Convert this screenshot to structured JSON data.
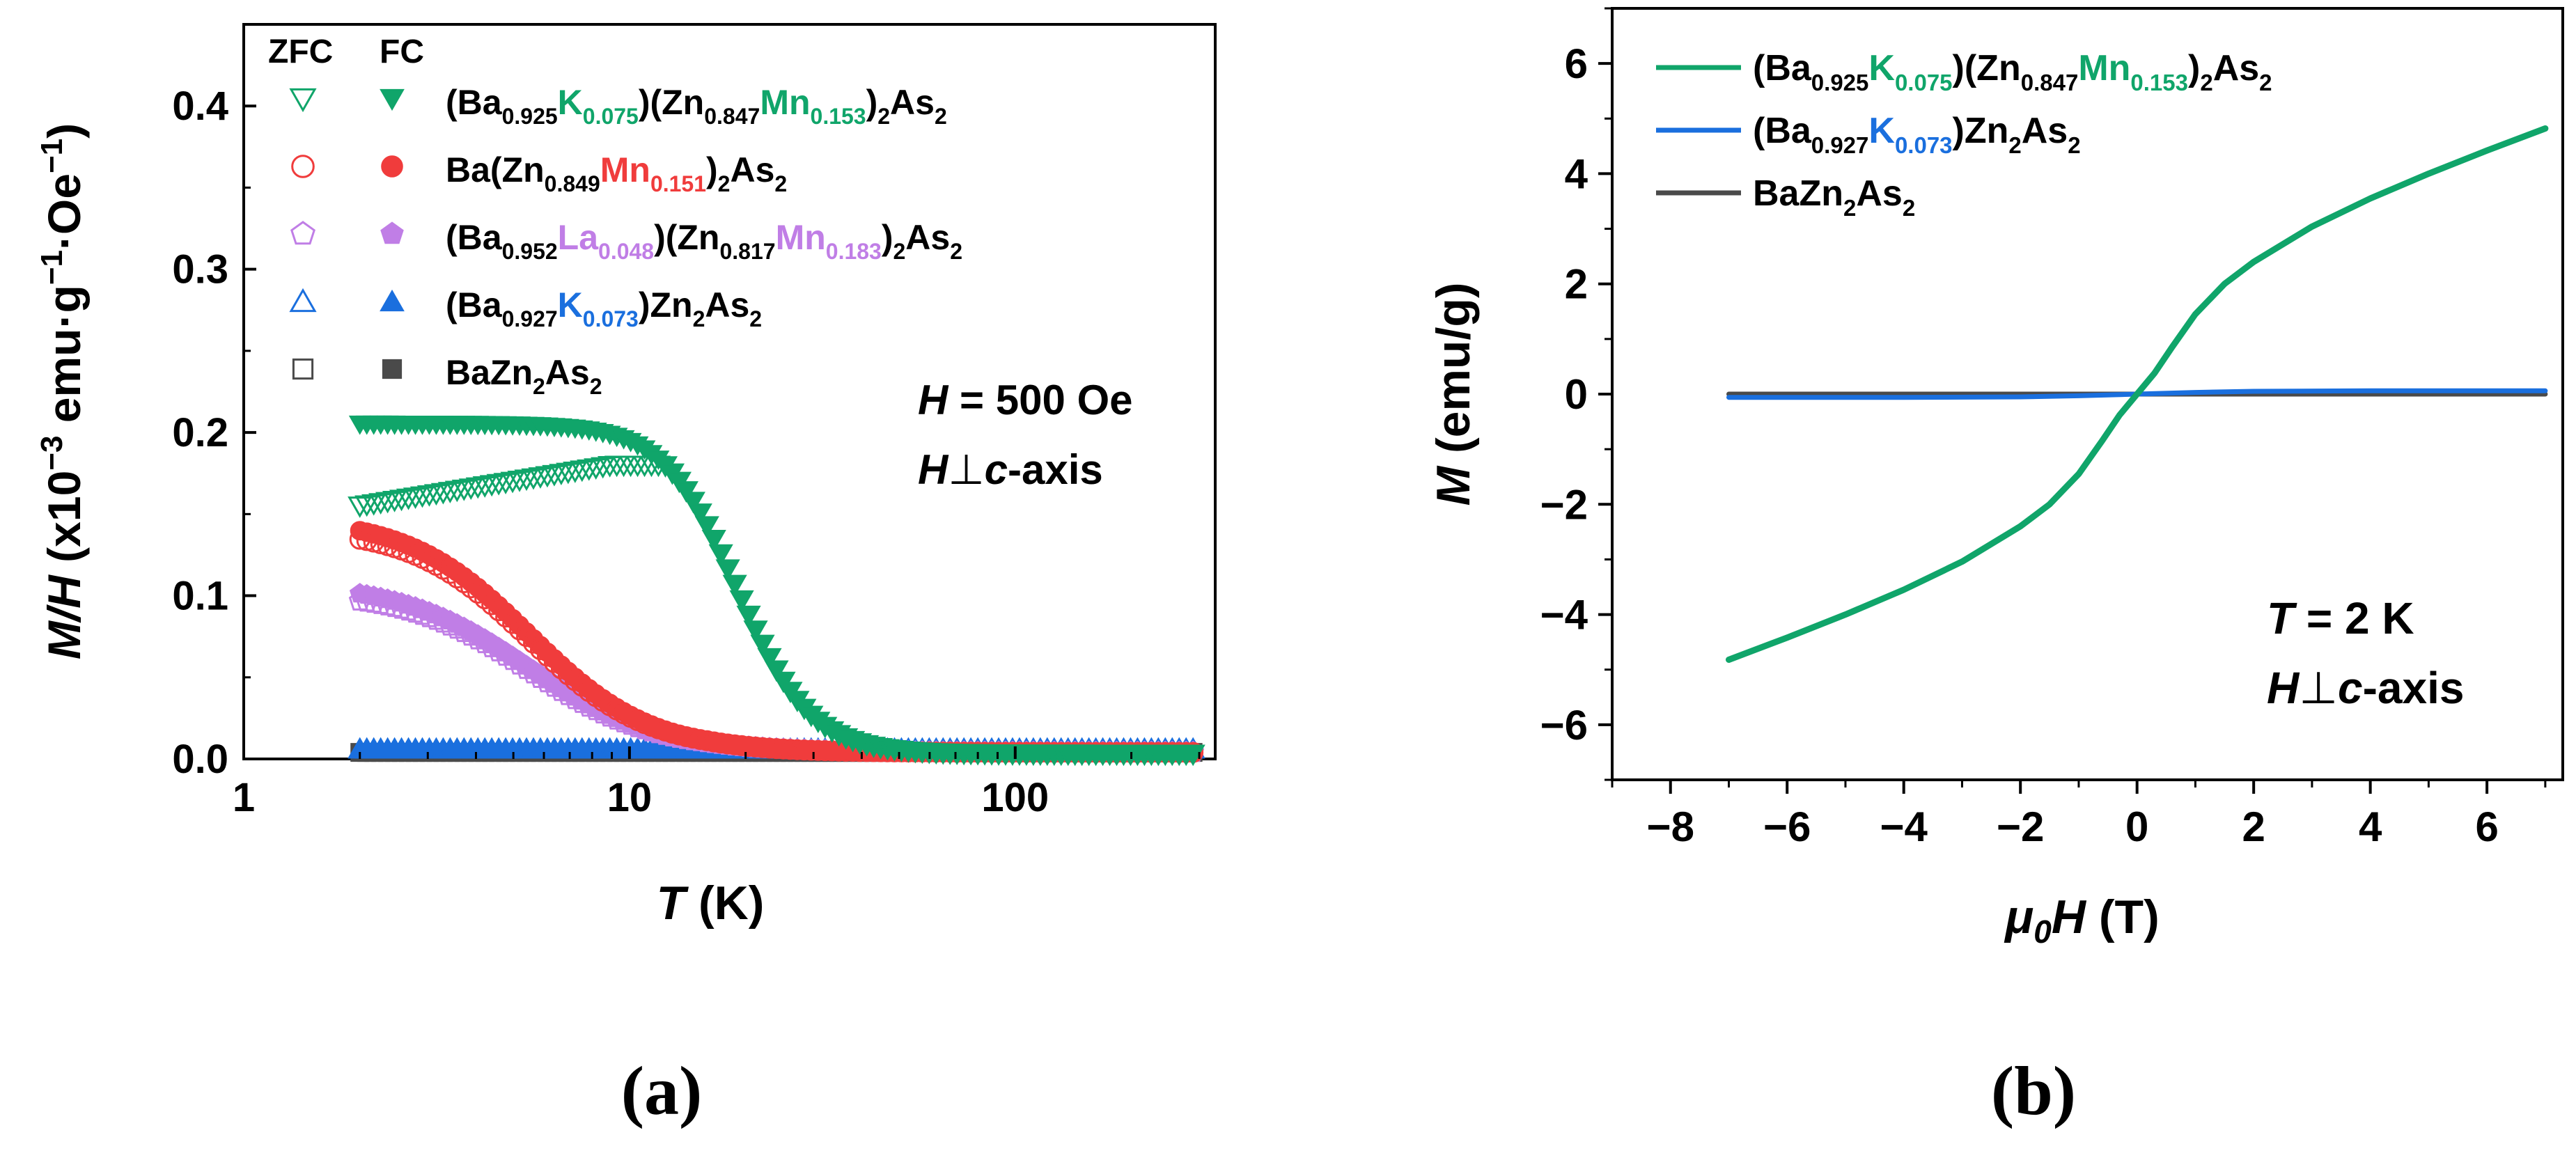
{
  "chart_data": [
    {
      "panel": "a",
      "type": "scatter",
      "caption": "(a)",
      "xlabel": {
        "italic": "T",
        "rest": " (K)"
      },
      "ylabel": {
        "italic": "M/H",
        "rest": " (x10",
        "exp1": "−3",
        "mid": " emu·g",
        "exp2": "−1",
        "mid2": "·Oe",
        "exp3": "−1",
        "close": ")"
      },
      "xscale": "log",
      "xlim": [
        1,
        330
      ],
      "ylim": [
        0,
        0.45
      ],
      "xticks": [
        {
          "value": 1,
          "label": "1"
        },
        {
          "value": 10,
          "label": "10"
        },
        {
          "value": 100,
          "label": "100"
        }
      ],
      "yticks": [
        {
          "value": 0.0,
          "label": "0.0"
        },
        {
          "value": 0.1,
          "label": "0.1"
        },
        {
          "value": 0.2,
          "label": "0.2"
        },
        {
          "value": 0.3,
          "label": "0.3"
        },
        {
          "value": 0.4,
          "label": "0.4"
        }
      ],
      "legend_headers": {
        "zfc": "ZFC",
        "fc": "FC"
      },
      "legend_position": "top-left",
      "annotations": {
        "field": {
          "italic": "H",
          "rest": " = 500 Oe"
        },
        "orientation": {
          "italic1": "H",
          "perp": "⊥",
          "italic2": "c",
          "rest": "-axis"
        }
      },
      "series": [
        {
          "name": "(Ba0.925K0.075)(Zn0.847Mn0.153)2As2",
          "color": "#10a56a",
          "marker": "triangle-down",
          "label_parts": [
            {
              "t": "(Ba"
            },
            {
              "t": "0.925",
              "sub": true
            },
            {
              "t": "K",
              "hl": true
            },
            {
              "t": "0.075",
              "sub": true,
              "hl": true
            },
            {
              "t": ")(Zn"
            },
            {
              "t": "0.847",
              "sub": true
            },
            {
              "t": "Mn",
              "hl": true
            },
            {
              "t": "0.153",
              "sub": true,
              "hl": true
            },
            {
              "t": ")"
            },
            {
              "t": "2",
              "sub": true
            },
            {
              "t": "As"
            },
            {
              "t": "2",
              "sub": true
            }
          ],
          "fc": {
            "y0": 0.205,
            "tc": 19,
            "w": 0.22,
            "floor": 0.003
          },
          "zfc": {
            "low": 0.155,
            "peak_T": 9,
            "peak": 0.18
          }
        },
        {
          "name": "Ba(Zn0.849Mn0.151)2As2",
          "color": "#f03c3c",
          "marker": "circle",
          "label_parts": [
            {
              "t": "Ba(Zn"
            },
            {
              "t": "0.849",
              "sub": true
            },
            {
              "t": "Mn",
              "hl": true
            },
            {
              "t": "0.151",
              "sub": true,
              "hl": true
            },
            {
              "t": ")"
            },
            {
              "t": "2",
              "sub": true
            },
            {
              "t": "As"
            },
            {
              "t": "2",
              "sub": true
            }
          ],
          "fc": {
            "y0": 0.148,
            "tc": 5.5,
            "w": 0.36,
            "floor": 0.004
          },
          "zfc": {
            "offset": 0.007
          }
        },
        {
          "name": "(Ba0.952La0.048)(Zn0.817Mn0.183)2As2",
          "color": "#c07ee6",
          "marker": "pentagon",
          "label_parts": [
            {
              "t": "(Ba"
            },
            {
              "t": "0.952",
              "sub": true
            },
            {
              "t": "La",
              "hl": true
            },
            {
              "t": "0.048",
              "sub": true,
              "hl": true
            },
            {
              "t": ")(Zn"
            },
            {
              "t": "0.817",
              "sub": true
            },
            {
              "t": "Mn",
              "hl": true
            },
            {
              "t": "0.183",
              "sub": true,
              "hl": true
            },
            {
              "t": ")"
            },
            {
              "t": "2",
              "sub": true
            },
            {
              "t": "As"
            },
            {
              "t": "2",
              "sub": true
            }
          ],
          "fc": {
            "y0": 0.108,
            "tc": 5.5,
            "w": 0.38,
            "floor": 0.004
          },
          "zfc": {
            "offset": 0.006
          }
        },
        {
          "name": "(Ba0.927K0.073)Zn2As2",
          "color": "#1a6fde",
          "marker": "triangle-up",
          "label_parts": [
            {
              "t": "(Ba"
            },
            {
              "t": "0.927",
              "sub": true
            },
            {
              "t": "K",
              "hl": true
            },
            {
              "t": "0.073",
              "sub": true,
              "hl": true
            },
            {
              "t": ")Zn"
            },
            {
              "t": "2",
              "sub": true
            },
            {
              "t": "As"
            },
            {
              "t": "2",
              "sub": true
            }
          ],
          "flat": 0.006
        },
        {
          "name": "BaZn2As2",
          "color": "#4a4a4a",
          "marker": "square",
          "label_parts": [
            {
              "t": "BaZn"
            },
            {
              "t": "2",
              "sub": true
            },
            {
              "t": "As"
            },
            {
              "t": "2",
              "sub": true
            }
          ],
          "flat": 0.004
        }
      ]
    },
    {
      "panel": "b",
      "type": "line",
      "caption": "(b)",
      "xlabel": {
        "italic": "μ",
        "sub": "0",
        "italic2": "H",
        "rest": " (T)"
      },
      "ylabel": {
        "italic": "M",
        "rest": " (emu/g)"
      },
      "xlim": [
        -9,
        7.3
      ],
      "ylim": [
        -7,
        7
      ],
      "xticks": [
        {
          "value": -8,
          "label": "−8"
        },
        {
          "value": -6,
          "label": "−6"
        },
        {
          "value": -4,
          "label": "−4"
        },
        {
          "value": -2,
          "label": "−2"
        },
        {
          "value": 0,
          "label": "0"
        },
        {
          "value": 2,
          "label": "2"
        },
        {
          "value": 4,
          "label": "4"
        },
        {
          "value": 6,
          "label": "6"
        }
      ],
      "yticks": [
        {
          "value": -6,
          "label": "−6"
        },
        {
          "value": -4,
          "label": "−4"
        },
        {
          "value": -2,
          "label": "−2"
        },
        {
          "value": 0,
          "label": "0"
        },
        {
          "value": 2,
          "label": "2"
        },
        {
          "value": 4,
          "label": "4"
        },
        {
          "value": 6,
          "label": "6"
        }
      ],
      "legend_position": "top-left",
      "annotations": {
        "temperature": {
          "italic": "T",
          "rest": " = 2 K"
        },
        "orientation": {
          "italic1": "H",
          "perp": "⊥",
          "italic2": "c",
          "rest": "-axis"
        }
      },
      "series": [
        {
          "name": "(Ba0.925K0.075)(Zn0.847Mn0.153)2As2",
          "color": "#10a56a",
          "label_parts": [
            {
              "t": "(Ba"
            },
            {
              "t": "0.925",
              "sub": true
            },
            {
              "t": "K",
              "hl": true
            },
            {
              "t": "0.075",
              "sub": true,
              "hl": true
            },
            {
              "t": ")(Zn"
            },
            {
              "t": "0.847",
              "sub": true
            },
            {
              "t": "Mn",
              "hl": true
            },
            {
              "t": "0.153",
              "sub": true,
              "hl": true
            },
            {
              "t": ")"
            },
            {
              "t": "2",
              "sub": true
            },
            {
              "t": "As"
            },
            {
              "t": "2",
              "sub": true
            }
          ],
          "x": [
            -7,
            -6,
            -5,
            -4,
            -3,
            -2,
            -1.5,
            -1,
            -0.6,
            -0.3,
            0,
            0.3,
            0.6,
            1,
            1.5,
            2,
            3,
            4,
            5,
            6,
            7
          ],
          "y": [
            -4.82,
            -4.42,
            -4.0,
            -3.55,
            -3.04,
            -2.4,
            -2.0,
            -1.45,
            -0.85,
            -0.38,
            0.0,
            0.38,
            0.85,
            1.45,
            2.0,
            2.4,
            3.04,
            3.55,
            4.0,
            4.42,
            4.82
          ]
        },
        {
          "name": "(Ba0.927K0.073)Zn2As2",
          "color": "#1a6fde",
          "label_parts": [
            {
              "t": "(Ba"
            },
            {
              "t": "0.927",
              "sub": true
            },
            {
              "t": "K",
              "hl": true
            },
            {
              "t": "0.073",
              "sub": true,
              "hl": true
            },
            {
              "t": ")Zn"
            },
            {
              "t": "2",
              "sub": true
            },
            {
              "t": "As"
            },
            {
              "t": "2",
              "sub": true
            }
          ],
          "x": [
            -7,
            -4,
            -2,
            -1,
            0,
            1,
            2,
            4,
            7
          ],
          "y": [
            -0.06,
            -0.06,
            -0.05,
            -0.03,
            0.0,
            0.03,
            0.05,
            0.06,
            0.06
          ]
        },
        {
          "name": "BaZn2As2",
          "color": "#4a4a4a",
          "label_parts": [
            {
              "t": "BaZn"
            },
            {
              "t": "2",
              "sub": true
            },
            {
              "t": "As"
            },
            {
              "t": "2",
              "sub": true
            }
          ],
          "x": [
            -7,
            7
          ],
          "y": [
            0,
            0
          ]
        }
      ]
    }
  ]
}
